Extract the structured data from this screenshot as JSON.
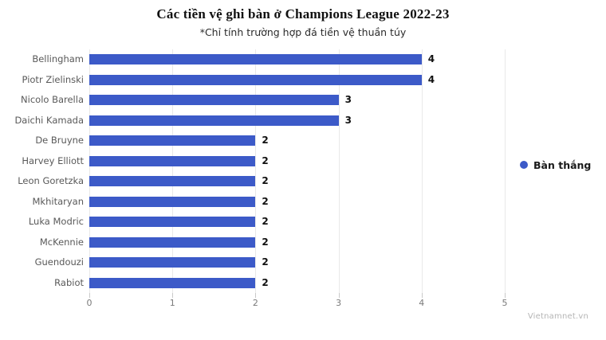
{
  "chart_data": {
    "type": "bar",
    "orientation": "horizontal",
    "title": "Các tiền vệ ghi bàn ở Champions League 2022-23",
    "subtitle": "*Chỉ tính trường hợp đá tiền vệ thuần túy",
    "legend_label": "Bàn thắng",
    "legend_position": "right",
    "categories": [
      "Bellingham",
      "Piotr Zielinski",
      "Nicolo Barella",
      "Daichi Kamada",
      "De Bruyne",
      "Harvey Elliott",
      "Leon Goretzka",
      "Mkhitaryan",
      "Luka Modric",
      "McKennie",
      "Guendouzi",
      "Rabiot"
    ],
    "values": [
      4,
      4,
      3,
      3,
      2,
      2,
      2,
      2,
      2,
      2,
      2,
      2
    ],
    "xlabel": "",
    "ylabel": "",
    "xlim": [
      0,
      5
    ],
    "x_ticks": [
      0,
      1,
      2,
      3,
      4,
      5
    ],
    "grid": "vertical-only",
    "bar_color": "#3c5ac8"
  },
  "watermark": {
    "text": "Vietnamnet.vn"
  },
  "colors": {
    "bar": "#3c5ac8",
    "grid": "#e9e9e9",
    "tick": "#c9c9c9",
    "axis_text": "#7a7a7a",
    "category_text": "#595959",
    "value_text": "#111111",
    "watermark_text": "#b5b5b5"
  }
}
